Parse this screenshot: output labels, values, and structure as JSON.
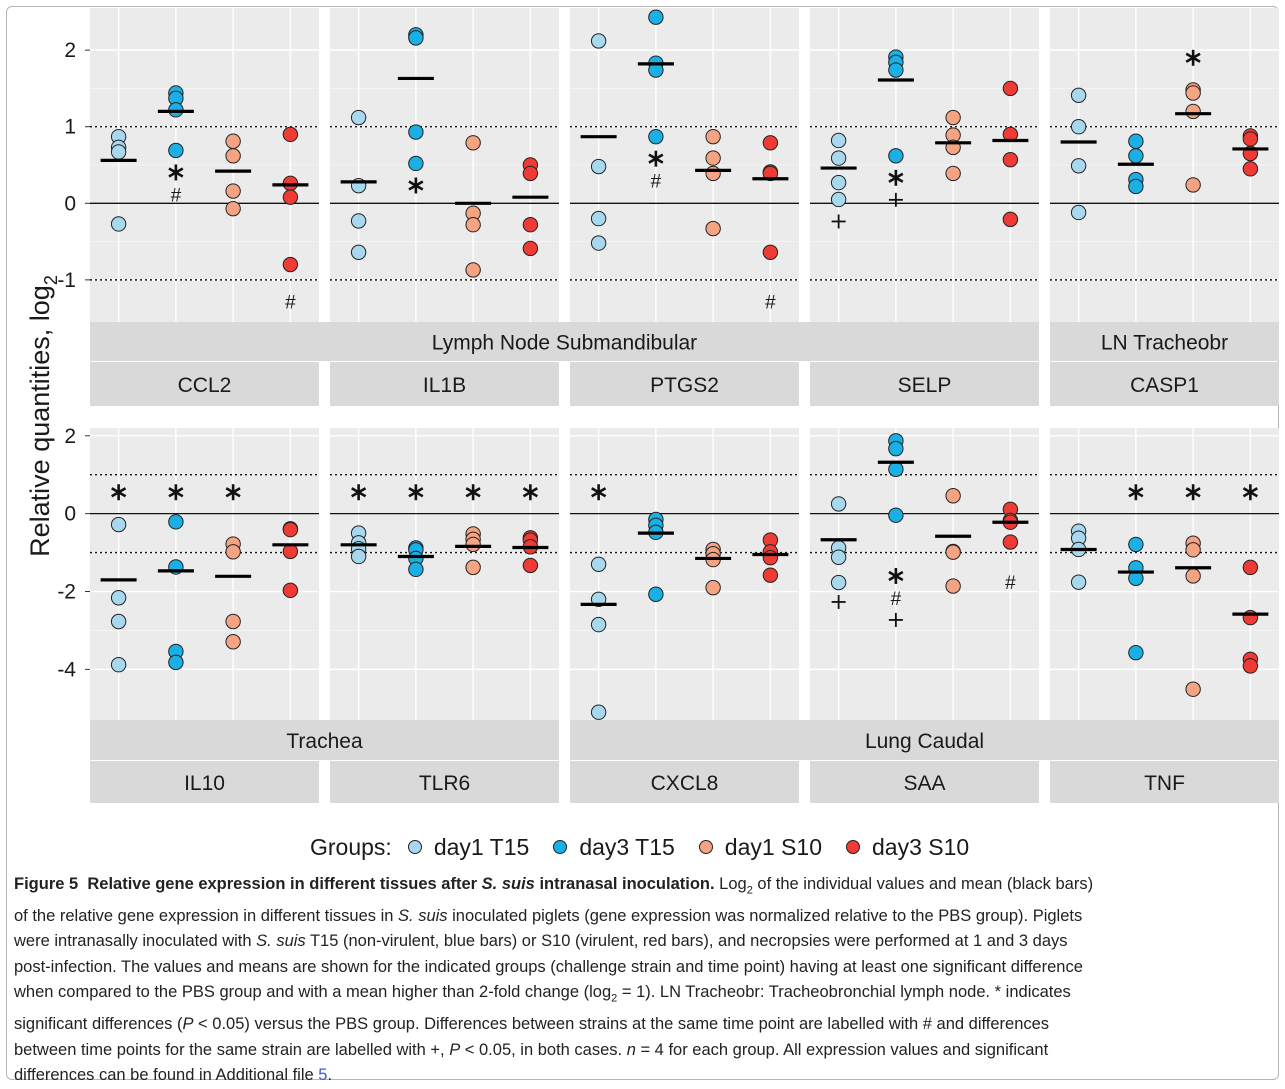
{
  "y_axis_label": "Relative quantities, log",
  "y_axis_label_sub": "2",
  "chart_data": [
    {
      "type": "scatter",
      "panel": "CCL2",
      "row": 1,
      "group_label": "Lymph Node Submandibular",
      "ylim": [
        -1.55,
        2.55
      ],
      "ticks": [
        -1,
        0,
        1,
        2
      ],
      "series": [
        {
          "name": "day1 T15",
          "values": [
            0.87,
            0.73,
            0.67,
            -0.27
          ],
          "mean": 0.56
        },
        {
          "name": "day3 T15",
          "values": [
            1.44,
            1.37,
            1.22,
            0.69
          ],
          "mean": 1.2
        },
        {
          "name": "day1 S10",
          "values": [
            0.81,
            0.62,
            0.16,
            -0.07
          ],
          "mean": 0.42
        },
        {
          "name": "day3 S10",
          "values": [
            0.9,
            0.26,
            0.08,
            -0.8
          ],
          "mean": 0.24
        }
      ],
      "annotations": [
        {
          "group": "day3 T15",
          "marks": [
            "✱",
            "#"
          ]
        },
        {
          "group": "day3 S10",
          "marks": [
            "#"
          ]
        }
      ]
    },
    {
      "type": "scatter",
      "panel": "IL1B",
      "row": 1,
      "group_label": "Lymph Node Submandibular",
      "ylim": [
        -1.55,
        2.55
      ],
      "ticks": [
        -1,
        0,
        1,
        2
      ],
      "series": [
        {
          "name": "day1 T15",
          "values": [
            1.12,
            0.23,
            -0.23,
            -0.64
          ],
          "mean": 0.28
        },
        {
          "name": "day3 T15",
          "values": [
            2.2,
            2.16,
            0.93,
            0.52
          ],
          "mean": 1.63
        },
        {
          "name": "day1 S10",
          "values": [
            0.79,
            -0.13,
            -0.28,
            -0.87
          ],
          "mean": 0.0
        },
        {
          "name": "day3 S10",
          "values": [
            0.5,
            0.39,
            -0.28,
            -0.59
          ],
          "mean": 0.08
        }
      ],
      "annotations": [
        {
          "group": "day3 T15",
          "marks": [
            "✱"
          ]
        }
      ]
    },
    {
      "type": "scatter",
      "panel": "PTGS2",
      "row": 1,
      "group_label": "Lymph Node Submandibular",
      "ylim": [
        -1.55,
        2.55
      ],
      "ticks": [
        -1,
        0,
        1,
        2
      ],
      "series": [
        {
          "name": "day1 T15",
          "values": [
            2.12,
            0.48,
            -0.2,
            -0.52
          ],
          "mean": 0.87
        },
        {
          "name": "day3 T15",
          "values": [
            2.43,
            1.83,
            1.74,
            0.87
          ],
          "mean": 1.82
        },
        {
          "name": "day1 S10",
          "values": [
            0.87,
            0.59,
            0.39,
            -0.33
          ],
          "mean": 0.43
        },
        {
          "name": "day3 S10",
          "values": [
            0.79,
            0.41,
            0.39,
            -0.64
          ],
          "mean": 0.32
        }
      ],
      "annotations": [
        {
          "group": "day3 T15",
          "marks": [
            "✱",
            "#"
          ]
        },
        {
          "group": "day3 S10",
          "marks": [
            "#"
          ]
        }
      ]
    },
    {
      "type": "scatter",
      "panel": "SELP",
      "row": 1,
      "group_label": "Lymph Node Submandibular",
      "ylim": [
        -1.55,
        2.55
      ],
      "ticks": [
        -1,
        0,
        1,
        2
      ],
      "series": [
        {
          "name": "day1 T15",
          "values": [
            0.82,
            0.59,
            0.27,
            0.05
          ],
          "mean": 0.46
        },
        {
          "name": "day3 T15",
          "values": [
            1.91,
            1.84,
            1.74,
            0.62
          ],
          "mean": 1.61
        },
        {
          "name": "day1 S10",
          "values": [
            1.12,
            0.89,
            0.73,
            0.39
          ],
          "mean": 0.79
        },
        {
          "name": "day3 S10",
          "values": [
            1.5,
            0.9,
            0.57,
            -0.21
          ],
          "mean": 0.82
        }
      ],
      "annotations": [
        {
          "group": "day1 T15",
          "marks": [
            "+"
          ]
        },
        {
          "group": "day3 T15",
          "marks": [
            "✱",
            "+"
          ]
        }
      ]
    },
    {
      "type": "scatter",
      "panel": "CASP1",
      "row": 1,
      "group_label": "LN Tracheobr",
      "ylim": [
        -1.55,
        2.55
      ],
      "ticks": [
        -1,
        0,
        1,
        2
      ],
      "series": [
        {
          "name": "day1 T15",
          "values": [
            1.41,
            1.0,
            0.49,
            -0.12
          ],
          "mean": 0.8
        },
        {
          "name": "day3 T15",
          "values": [
            0.81,
            0.62,
            0.31,
            0.22
          ],
          "mean": 0.51
        },
        {
          "name": "day1 S10",
          "values": [
            1.48,
            1.44,
            1.2,
            0.24
          ],
          "mean": 1.17
        },
        {
          "name": "day3 S10",
          "values": [
            0.88,
            0.84,
            0.65,
            0.45
          ],
          "mean": 0.71
        }
      ],
      "annotations": [
        {
          "group": "day1 S10",
          "marks": [
            "✱"
          ]
        }
      ]
    },
    {
      "type": "scatter",
      "panel": "IL10",
      "row": 2,
      "group_label": "Trachea",
      "ylim": [
        -5.3,
        2.2
      ],
      "ticks": [
        -4,
        -2,
        0,
        2
      ],
      "series": [
        {
          "name": "day1 T15",
          "values": [
            -0.28,
            -2.16,
            -2.77,
            -3.88
          ],
          "mean": -1.7
        },
        {
          "name": "day3 T15",
          "values": [
            -0.21,
            -1.37,
            -3.54,
            -3.82
          ],
          "mean": -1.47
        },
        {
          "name": "day1 S10",
          "values": [
            -0.78,
            -0.98,
            -2.77,
            -3.29
          ],
          "mean": -1.61
        },
        {
          "name": "day3 S10",
          "values": [
            -0.39,
            -0.97,
            -1.97,
            -0.41
          ],
          "mean": -0.8
        }
      ],
      "annotations": [
        {
          "group": "day1 T15",
          "marks": [
            "✱"
          ]
        },
        {
          "group": "day3 T15",
          "marks": [
            "✱"
          ]
        },
        {
          "group": "day1 S10",
          "marks": [
            "✱"
          ]
        }
      ]
    },
    {
      "type": "scatter",
      "panel": "TLR6",
      "row": 2,
      "group_label": "Trachea",
      "ylim": [
        -5.3,
        2.2
      ],
      "ticks": [
        -4,
        -2,
        0,
        2
      ],
      "series": [
        {
          "name": "day1 T15",
          "values": [
            -0.5,
            -0.75,
            -0.9,
            -1.1
          ],
          "mean": -0.8
        },
        {
          "name": "day3 T15",
          "values": [
            -0.88,
            -0.93,
            -1.15,
            -1.43
          ],
          "mean": -1.1
        },
        {
          "name": "day1 S10",
          "values": [
            -0.52,
            -0.66,
            -0.79,
            -1.38
          ],
          "mean": -0.84
        },
        {
          "name": "day3 S10",
          "values": [
            -0.62,
            -0.68,
            -0.85,
            -1.33
          ],
          "mean": -0.87
        }
      ],
      "annotations": [
        {
          "group": "day1 T15",
          "marks": [
            "✱"
          ]
        },
        {
          "group": "day3 T15",
          "marks": [
            "✱"
          ]
        },
        {
          "group": "day1 S10",
          "marks": [
            "✱"
          ]
        },
        {
          "group": "day3 S10",
          "marks": [
            "✱"
          ]
        }
      ]
    },
    {
      "type": "scatter",
      "panel": "CXCL8",
      "row": 2,
      "group_label": "Lung Caudal",
      "ylim": [
        -5.3,
        2.2
      ],
      "ticks": [
        -4,
        -2,
        0,
        2
      ],
      "series": [
        {
          "name": "day1 T15",
          "values": [
            -1.3,
            -2.2,
            -2.85,
            -5.1
          ],
          "mean": -2.33
        },
        {
          "name": "day3 T15",
          "values": [
            -0.15,
            -0.3,
            -0.48,
            -2.07
          ],
          "mean": -0.5
        },
        {
          "name": "day1 S10",
          "values": [
            -0.92,
            -1.03,
            -1.18,
            -1.9
          ],
          "mean": -1.15
        },
        {
          "name": "day3 S10",
          "values": [
            -0.68,
            -0.98,
            -1.13,
            -1.58
          ],
          "mean": -1.05
        }
      ],
      "annotations": [
        {
          "group": "day1 T15",
          "marks": [
            "✱"
          ]
        }
      ]
    },
    {
      "type": "scatter",
      "panel": "SAA",
      "row": 2,
      "group_label": "Lung Caudal",
      "ylim": [
        -5.3,
        2.2
      ],
      "ticks": [
        -4,
        -2,
        0,
        2
      ],
      "series": [
        {
          "name": "day1 T15",
          "values": [
            0.25,
            -0.88,
            -1.12,
            -1.77
          ],
          "mean": -0.67
        },
        {
          "name": "day3 T15",
          "values": [
            1.87,
            1.67,
            1.14,
            -0.04
          ],
          "mean": 1.32
        },
        {
          "name": "day1 S10",
          "values": [
            0.46,
            -0.97,
            -1.86,
            -0.99
          ],
          "mean": -0.58
        },
        {
          "name": "day3 S10",
          "values": [
            0.11,
            -0.17,
            -0.22,
            -0.73
          ],
          "mean": -0.22
        }
      ],
      "annotations": [
        {
          "group": "day1 T15",
          "marks": [
            "+"
          ]
        },
        {
          "group": "day3 T15",
          "marks": [
            "✱",
            "#",
            "+"
          ]
        },
        {
          "group": "day3 S10",
          "marks": [
            "#"
          ]
        }
      ]
    },
    {
      "type": "scatter",
      "panel": "TNF",
      "row": 2,
      "group_label": "Lung Caudal",
      "ylim": [
        -5.3,
        2.2
      ],
      "ticks": [
        -4,
        -2,
        0,
        2
      ],
      "series": [
        {
          "name": "day1 T15",
          "values": [
            -0.45,
            -0.63,
            -0.92,
            -1.76
          ],
          "mean": -0.92
        },
        {
          "name": "day3 T15",
          "values": [
            -0.79,
            -1.39,
            -1.66,
            -3.57
          ],
          "mean": -1.5
        },
        {
          "name": "day1 S10",
          "values": [
            -0.76,
            -0.93,
            -1.6,
            -4.51
          ],
          "mean": -1.39
        },
        {
          "name": "day3 S10",
          "values": [
            -1.38,
            -2.67,
            -3.74,
            -3.91
          ],
          "mean": -2.58
        }
      ],
      "annotations": [
        {
          "group": "day3 T15",
          "marks": [
            "✱"
          ]
        },
        {
          "group": "day1 S10",
          "marks": [
            "✱"
          ]
        },
        {
          "group": "day3 S10",
          "marks": [
            "✱"
          ]
        }
      ]
    }
  ],
  "strip_groups": [
    {
      "label": "Lymph Node Submandibular",
      "row": 1,
      "from": 0,
      "to": 3
    },
    {
      "label": "LN Tracheobr",
      "row": 1,
      "from": 4,
      "to": 4
    },
    {
      "label": "Trachea",
      "row": 2,
      "from": 0,
      "to": 1
    },
    {
      "label": "Lung Caudal",
      "row": 2,
      "from": 2,
      "to": 4
    }
  ],
  "colors": {
    "day1 T15": "#a8d8ee",
    "day3 T15": "#1ab0e6",
    "day1 S10": "#f4a383",
    "day3 S10": "#ee3b36",
    "panel_bg": "#ebebeb",
    "strip_bg": "#d9d9d9",
    "grid": "#ffffff"
  },
  "legend": {
    "title": "Groups:",
    "items": [
      "day1 T15",
      "day3 T15",
      "day1 S10",
      "day3 S10"
    ]
  },
  "caption": {
    "figure_label": "Figure 5",
    "title_part1": "Relative gene expression in different tissues after ",
    "title_italic": "S. suis",
    "title_part2": " intranasal inoculation.",
    "line1_a": " Log",
    "line1_sub": "2",
    "line1_b": " of the individual values and mean (black bars)",
    "line2_a": "of the relative gene expression in different tissues in ",
    "line2_ital": "S. suis",
    "line2_b": " inoculated piglets (gene expression was normalized relative to the PBS group). Piglets",
    "line3_a": "were intranasally inoculated with ",
    "line3_ital": "S. suis",
    "line3_b": " T15 (non-virulent, blue bars) or S10 (virulent, red bars), and necropsies were performed at 1 and 3 days",
    "line4": "post-infection. The values and means are shown for the indicated groups (challenge strain and time point) having at least one significant difference",
    "line5_a": "when compared to the PBS group and with a mean higher than 2-fold change (log",
    "line5_sub": "2",
    "line5_b": " = 1). LN Tracheobr: Tracheobronchial lymph node. * indicates",
    "line6_a": "significant differences (",
    "line6_ital": "P",
    "line6_b": " < 0.05) versus the PBS group. Differences between strains at the same time point are labelled with # and differences",
    "line7_a": "between time points for the same strain are labelled with +, ",
    "line7_ital": "P",
    "line7_b": " < 0.05, in both cases. ",
    "line7_ital2": "n",
    "line7_c": " = 4 for each group. All expression values and significant",
    "line8_a": "differences can be found in Additional file ",
    "line8_link": "5",
    "line8_b": "."
  }
}
